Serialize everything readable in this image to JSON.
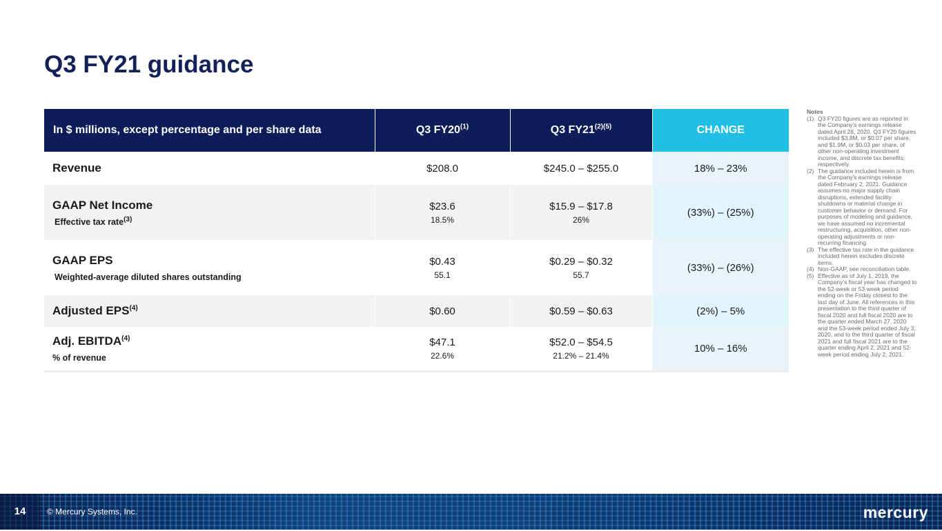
{
  "title": "Q3 FY21 guidance",
  "table": {
    "headers": {
      "label": "In $ millions, except percentage and per share data",
      "fy20": "Q3 FY20",
      "fy20_sup": "(1)",
      "fy21": "Q3 FY21",
      "fy21_sup": "(2)(5)",
      "change": "CHANGE"
    },
    "rows": [
      {
        "label": "Revenue",
        "fy20": "$208.0",
        "fy21": "$245.0 – $255.0",
        "change": "18% – 23%"
      },
      {
        "label": "GAAP Net Income",
        "sublabel": "Effective tax rate",
        "sublabel_sup": "(3)",
        "fy20": "$23.6",
        "fy20_sub": "18.5%",
        "fy21": "$15.9 – $17.8",
        "fy21_sub": "26%",
        "change": "(33%) – (25%)"
      },
      {
        "label": "GAAP EPS",
        "sublabel": "Weighted-average diluted shares outstanding",
        "fy20": "$0.43",
        "fy20_sub": "55.1",
        "fy21": "$0.29 – $0.32",
        "fy21_sub": "55.7",
        "change": "(33%) – (26%)"
      },
      {
        "label": "Adjusted EPS",
        "label_sup": "(4)",
        "fy20": "$0.60",
        "fy21": "$0.59 – $0.63",
        "change": "(2%) – 5%"
      },
      {
        "label": "Adj. EBITDA",
        "label_sup": "(4)",
        "sublabel": "% of revenue",
        "fy20": "$47.1",
        "fy20_sub": "22.6%",
        "fy21": "$52.0 – $54.5",
        "fy21_sub": "21.2% – 21.4%",
        "change": "10% – 16%"
      }
    ]
  },
  "notes": {
    "title": "Notes",
    "items": [
      {
        "num": "(1)",
        "text": "Q3 FY20 figures are as reported in the Company’s earnings release dated April 28, 2020.  Q3 FY20 figures included $3.8M, or $0.07 per share, and $1.9M, or $0.03 per share, of other non-operating investment income, and discrete tax benefits, respectively."
      },
      {
        "num": "(2)",
        "text": "The guidance included herein is from the Company's earnings release dated February 2, 2021. Guidance assumes no major supply chain disruptions, extended facility shutdowns or material change in customer behavior or demand. For purposes of modeling and guidance, we have assumed no incremental restructuring, acquisition, other non-operating adjustments or non-recurring financing."
      },
      {
        "num": "(3)",
        "text": "The effective tax rate in the guidance included herein excludes discrete items."
      },
      {
        "num": "(4)",
        "text": "Non-GAAP, see reconciliation table."
      },
      {
        "num": "(5)",
        "text": "Effective as of July 1, 2019, the Company’s fiscal year has changed to the 52-week or 53-week period ending on the Friday closest to the last day of June. All references in this presentation to the third quarter of fiscal 2020 and full fiscal 2020 are to the quarter ended March 27, 2020 and the 53-week period ended July 3, 2020, and to the third quarter of fiscal 2021 and full fiscal 2021 are to the quarter ending April 2, 2021 and 52-week period ending July 2, 2021."
      }
    ]
  },
  "footer": {
    "page_number": "14",
    "copyright": "© Mercury Systems, Inc.",
    "logo_text": "mercury"
  },
  "colors": {
    "navy": "#0d1d5a",
    "title_navy": "#13205a",
    "accent_cyan": "#21bfe6",
    "change_bg_light": "#e9f3fa",
    "row_gray": "#f2f2f2"
  }
}
